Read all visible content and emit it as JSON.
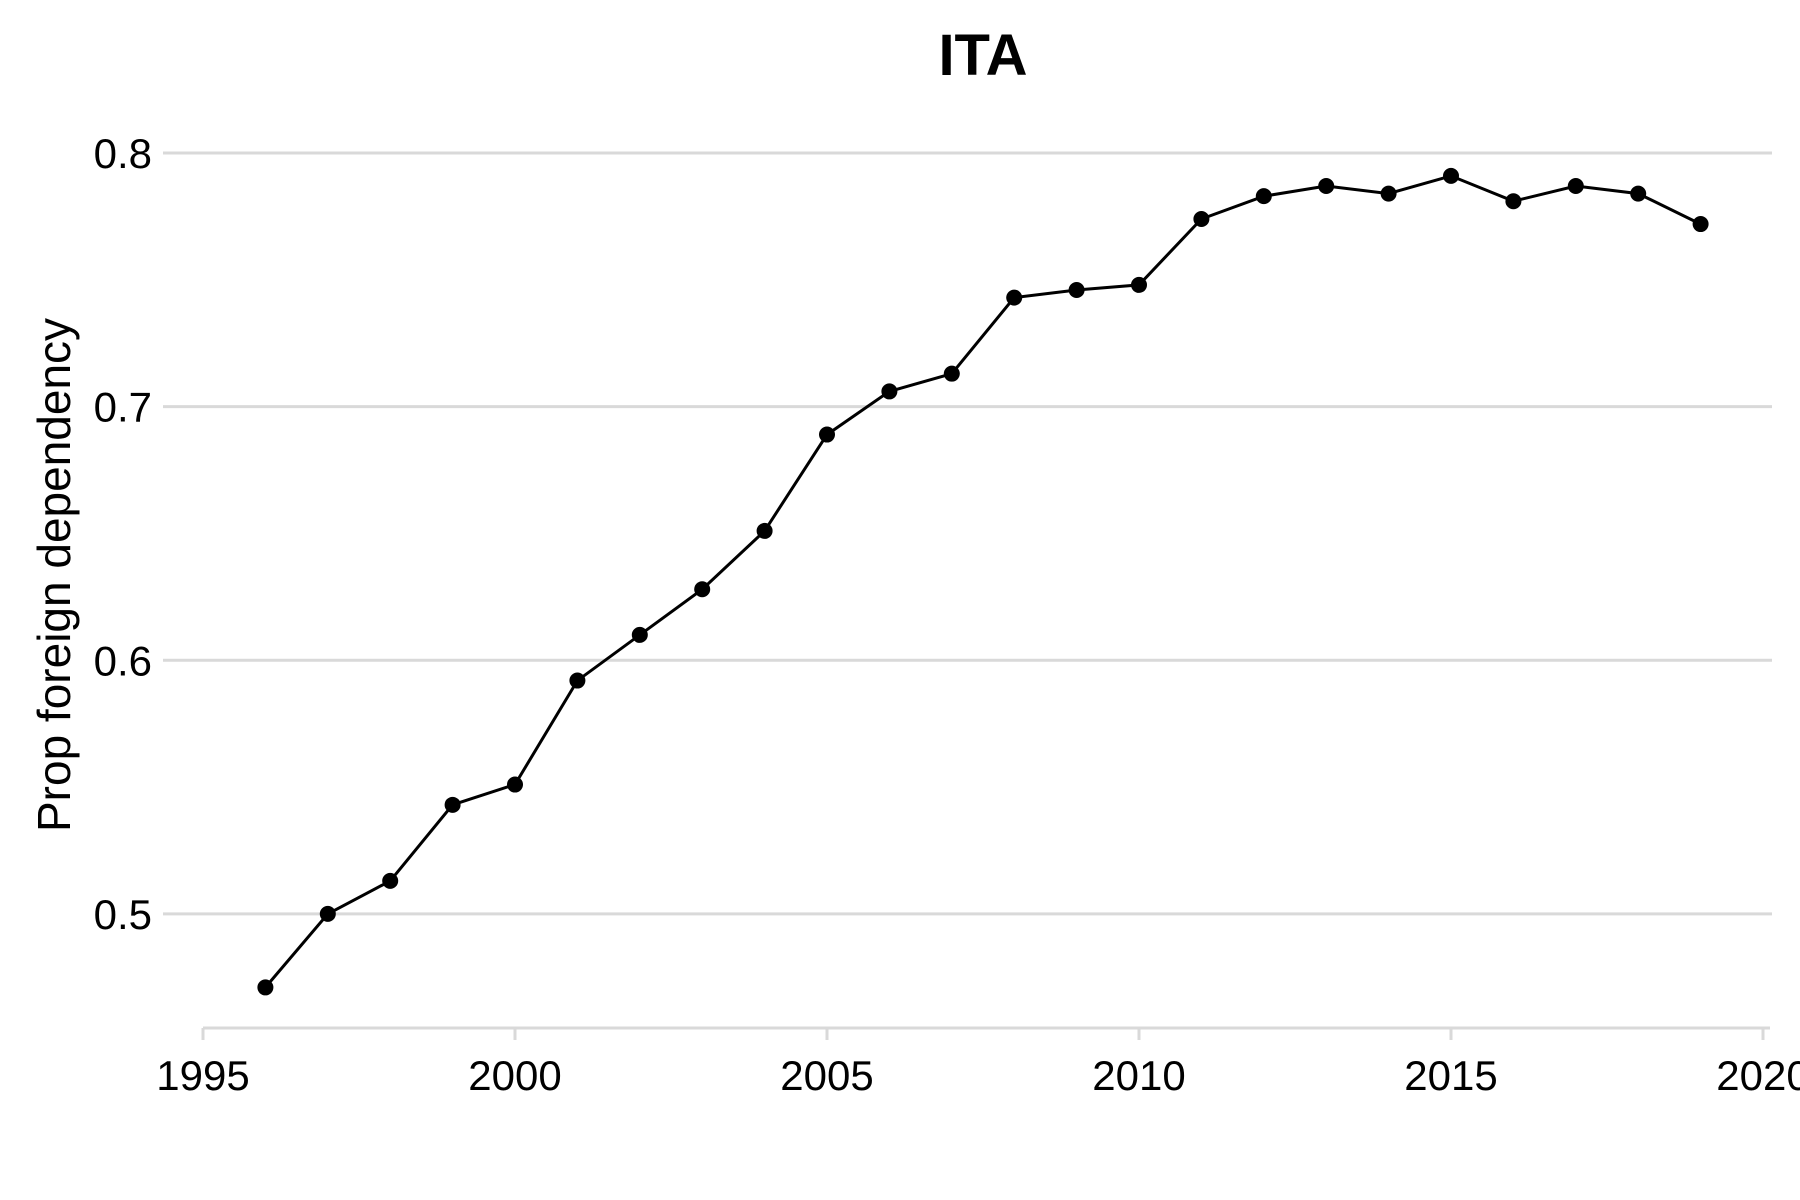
{
  "chart_data": {
    "type": "line",
    "title": "ITA",
    "xlabel": "",
    "ylabel": "Prop foreign dependency",
    "xlim": [
      1995,
      2020
    ],
    "ylim": [
      0.455,
      0.815
    ],
    "xticks": [
      1995,
      2000,
      2005,
      2010,
      2015,
      2020
    ],
    "xtick_labels": [
      "1995",
      "2000",
      "2005",
      "2010",
      "2015",
      "2020"
    ],
    "yticks": [
      0.5,
      0.6,
      0.7,
      0.8
    ],
    "ytick_labels": [
      "0.5",
      "0.6",
      "0.7",
      "0.8"
    ],
    "grid": "horizontal",
    "line_color": "#000000",
    "grid_color": "#d9d9d9",
    "x": [
      1996,
      1997,
      1998,
      1999,
      2000,
      2001,
      2002,
      2003,
      2004,
      2005,
      2006,
      2007,
      2008,
      2009,
      2010,
      2011,
      2012,
      2013,
      2014,
      2015,
      2016,
      2017,
      2018,
      2019
    ],
    "y": [
      0.471,
      0.5,
      0.513,
      0.543,
      0.551,
      0.592,
      0.61,
      0.628,
      0.651,
      0.689,
      0.706,
      0.713,
      0.743,
      0.746,
      0.748,
      0.774,
      0.783,
      0.787,
      0.784,
      0.791,
      0.781,
      0.787,
      0.784,
      0.772
    ]
  }
}
